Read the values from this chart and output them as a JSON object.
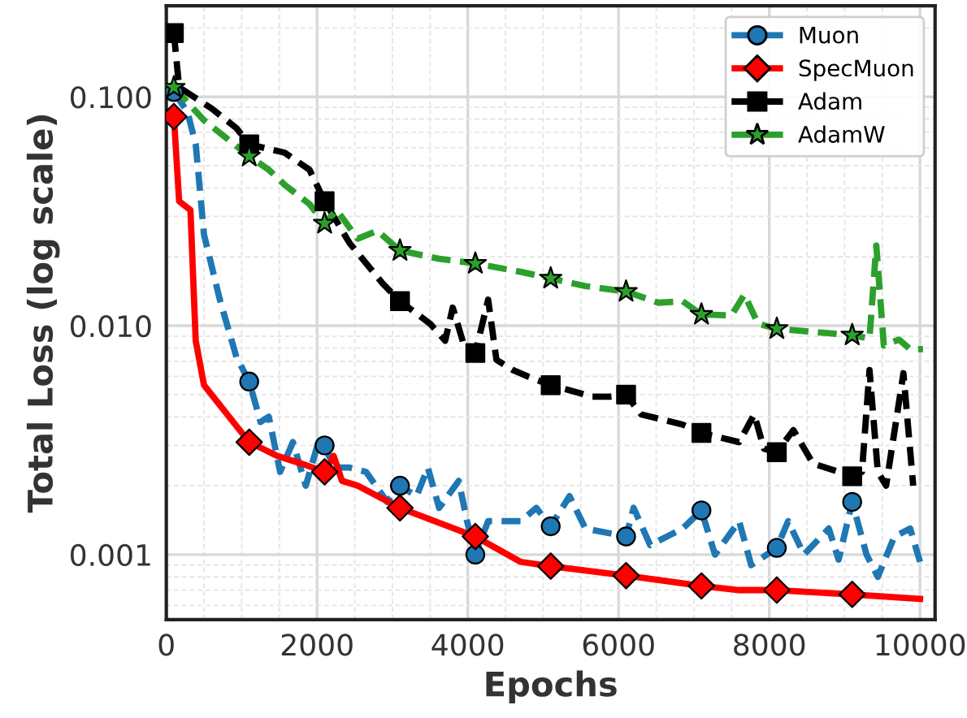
{
  "chart_data": {
    "type": "line",
    "xlabel": "Epochs",
    "ylabel": "Total Loss (log scale)",
    "log": "y",
    "grid": true,
    "legend": "top right",
    "xlim": [
      0,
      10200
    ],
    "xticks": [
      0,
      2000,
      4000,
      6000,
      8000,
      10000
    ],
    "ylim": [
      0.00052,
      0.25
    ],
    "yticks": [
      {
        "value": 0.001,
        "label": "0.001"
      },
      {
        "value": 0.01,
        "label": "0.010"
      },
      {
        "value": 0.1,
        "label": "0.100"
      }
    ],
    "series": [
      {
        "name": "Muon",
        "color": "#1f77b4",
        "line_style": "dashed",
        "x": [
          100,
          280,
          390,
          500,
          710,
          930,
          1100,
          1250,
          1360,
          1510,
          1680,
          1850,
          2030,
          2100,
          2220,
          2430,
          2650,
          2930,
          3100,
          3320,
          3470,
          3620,
          3880,
          3990,
          4100,
          4270,
          4700,
          4910,
          5100,
          5350,
          5560,
          6100,
          6200,
          6420,
          6850,
          7100,
          7280,
          7600,
          7760,
          8100,
          8250,
          8460,
          8790,
          8920,
          9100,
          9290,
          9440,
          9660,
          9870,
          10000
        ],
        "values": [
          0.105,
          0.086,
          0.062,
          0.025,
          0.013,
          0.0073,
          0.0057,
          0.0038,
          0.004,
          0.0023,
          0.0031,
          0.002,
          0.0032,
          0.003,
          0.0024,
          0.0024,
          0.0023,
          0.0017,
          0.002,
          0.0018,
          0.0024,
          0.0016,
          0.0021,
          0.0014,
          0.001,
          0.0014,
          0.0014,
          0.0016,
          0.00133,
          0.0018,
          0.0013,
          0.0012,
          0.0016,
          0.0011,
          0.0013,
          0.00156,
          0.001,
          0.0014,
          0.0009,
          0.00107,
          0.0014,
          0.001,
          0.0013,
          0.00095,
          0.0017,
          0.001,
          0.0008,
          0.0012,
          0.0013,
          0.00093
        ]
      },
      {
        "name": "SpecMuon",
        "color": "#ff0000",
        "line_style": "solid",
        "x": [
          100,
          170,
          320,
          390,
          500,
          710,
          1100,
          1470,
          1790,
          2100,
          2220,
          2330,
          2540,
          3100,
          4100,
          4700,
          5100,
          6100,
          7100,
          7600,
          8100,
          9100,
          10000
        ],
        "values": [
          0.082,
          0.035,
          0.032,
          0.0086,
          0.0055,
          0.0045,
          0.0031,
          0.0027,
          0.0025,
          0.0023,
          0.0027,
          0.0021,
          0.002,
          0.0016,
          0.0012,
          0.00093,
          0.00089,
          0.00081,
          0.00073,
          0.0007,
          0.0007,
          0.00067,
          0.00064
        ]
      },
      {
        "name": "Adam",
        "color": "#000000",
        "line_style": "dashed",
        "x": [
          100,
          170,
          600,
          930,
          1100,
          1570,
          1900,
          2100,
          2430,
          2870,
          3100,
          3500,
          3700,
          3800,
          3950,
          4100,
          4270,
          4380,
          4600,
          4800,
          5100,
          5650,
          5880,
          6100,
          6300,
          6850,
          7100,
          7600,
          7800,
          7930,
          8100,
          8320,
          8580,
          9100,
          9230,
          9330,
          9440,
          9550,
          9780,
          9910
        ],
        "values": [
          0.19,
          0.11,
          0.089,
          0.073,
          0.062,
          0.057,
          0.048,
          0.035,
          0.023,
          0.0153,
          0.0128,
          0.0102,
          0.0086,
          0.012,
          0.0082,
          0.0076,
          0.013,
          0.0071,
          0.0064,
          0.006,
          0.0055,
          0.0049,
          0.0049,
          0.005,
          0.0041,
          0.0037,
          0.0034,
          0.0031,
          0.0041,
          0.0029,
          0.0028,
          0.0035,
          0.0025,
          0.0022,
          0.0023,
          0.0064,
          0.0023,
          0.002,
          0.0062,
          0.002
        ]
      },
      {
        "name": "AdamW",
        "color": "#2ca02c",
        "line_style": "dashed",
        "x": [
          100,
          500,
          1100,
          1360,
          1580,
          1900,
          2100,
          2260,
          2540,
          2800,
          3100,
          3620,
          4100,
          4700,
          5100,
          5560,
          6100,
          6530,
          6850,
          7100,
          7500,
          7670,
          7850,
          8100,
          8580,
          9100,
          9330,
          9420,
          9520,
          9720,
          9870,
          10040
        ],
        "values": [
          0.11,
          0.079,
          0.055,
          0.048,
          0.041,
          0.034,
          0.028,
          0.032,
          0.024,
          0.026,
          0.0213,
          0.0196,
          0.0187,
          0.0172,
          0.0161,
          0.0149,
          0.0141,
          0.0126,
          0.0128,
          0.0112,
          0.0111,
          0.0137,
          0.0102,
          0.0097,
          0.0094,
          0.0091,
          0.0088,
          0.0224,
          0.0082,
          0.0087,
          0.0079,
          0.0079
        ]
      },
      {
        "type": "scatter",
        "color": "#1f77b4",
        "marker": "circle",
        "x": [
          100,
          1100,
          2100,
          3100,
          4100,
          5100,
          6100,
          7100,
          8100,
          9100
        ],
        "values": [
          0.105,
          0.0057,
          0.003,
          0.002,
          0.001,
          0.00133,
          0.0012,
          0.00156,
          0.00107,
          0.0017
        ]
      },
      {
        "type": "scatter",
        "color": "#ff0000",
        "marker": "diamond",
        "x": [
          100,
          1100,
          2100,
          3100,
          4100,
          5100,
          6100,
          7100,
          8100,
          9100
        ],
        "values": [
          0.082,
          0.0031,
          0.0023,
          0.0016,
          0.0012,
          0.00089,
          0.00081,
          0.00073,
          0.0007,
          0.00067
        ]
      },
      {
        "type": "scatter",
        "color": "#000000",
        "marker": "square",
        "x": [
          100,
          1100,
          2100,
          3100,
          4100,
          5100,
          6100,
          7100,
          8100,
          9100
        ],
        "values": [
          0.19,
          0.062,
          0.035,
          0.0128,
          0.0076,
          0.0055,
          0.005,
          0.0034,
          0.0028,
          0.0022
        ]
      },
      {
        "type": "scatter",
        "color": "#2ca02c",
        "marker": "star",
        "x": [
          100,
          1100,
          2100,
          3100,
          4100,
          5100,
          6100,
          7100,
          8100,
          9100
        ],
        "values": [
          0.11,
          0.055,
          0.028,
          0.0213,
          0.0187,
          0.0161,
          0.0141,
          0.0112,
          0.0097,
          0.0091
        ]
      }
    ]
  }
}
